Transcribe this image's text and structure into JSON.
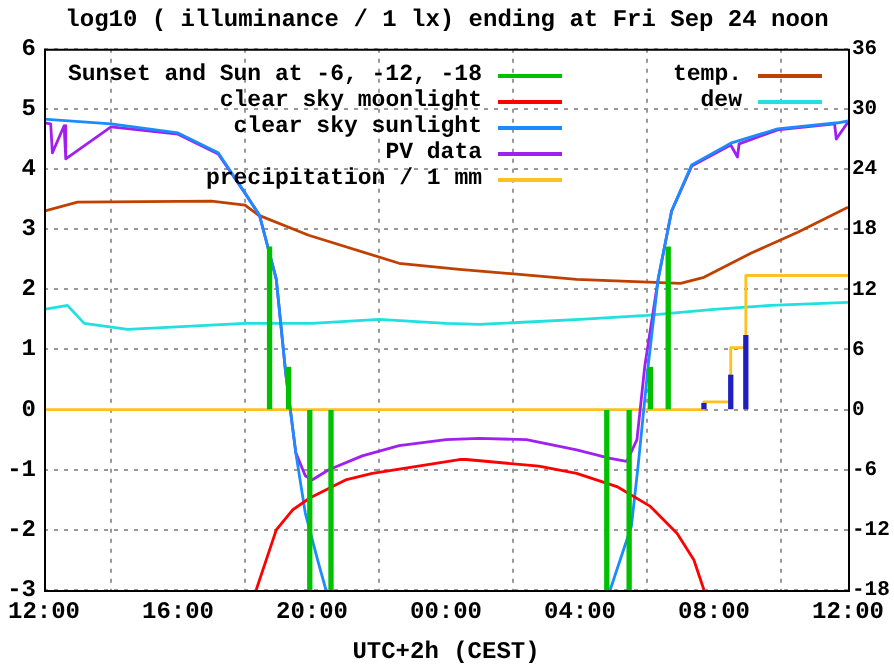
{
  "chart_data": {
    "type": "line",
    "title": "log10 ( illuminance / 1 lx) ending at Fri Sep 24 noon",
    "xlabel": "UTC+2h (CEST)",
    "xlim": [
      "--09-23T12:00",
      "--09-24T12:00"
    ],
    "xticks": [
      {
        "value": "--09-23T12:00",
        "label": "12:00"
      },
      {
        "value": "--09-23T16:00",
        "label": "16:00"
      },
      {
        "value": "--09-23T20:00",
        "label": "20:00"
      },
      {
        "value": "--09-24T00:00",
        "label": "00:00"
      },
      {
        "value": "--09-24T04:00",
        "label": "04:00"
      },
      {
        "value": "--09-24T08:00",
        "label": "08:00"
      },
      {
        "value": "--09-24T12:00",
        "label": "12:00"
      }
    ],
    "ylim": [
      -3,
      6
    ],
    "yticks": [
      -3,
      -2,
      -1,
      0,
      1,
      2,
      3,
      4,
      5,
      6
    ],
    "y2lim": [
      -18,
      36
    ],
    "y2ticks": [
      -18,
      -12,
      -6,
      0,
      6,
      12,
      18,
      24,
      30,
      36
    ],
    "grid": true,
    "legend": "top left",
    "series": [
      {
        "name": "Sunset and Sun at -6, -12, -18",
        "type": "bar",
        "color": "#00c000",
        "x": [
          "--09-23T18:44",
          "--09-23T19:18",
          "--09-23T19:56",
          "--09-23T20:34",
          "--09-24T04:48",
          "--09-24T05:28",
          "--09-24T06:06",
          "--09-24T06:38"
        ],
        "values": [
          2.7,
          0.7,
          -3,
          -3,
          -3,
          -3,
          0.7,
          2.7
        ]
      },
      {
        "name": "clear sky moonlight",
        "color": "#ff0000",
        "x": [
          "--09-23T18:20",
          "--09-23T18:56",
          "--09-23T19:25",
          "--09-23T19:56",
          "--09-23T21:00",
          "--09-23T21:48",
          "--09-24T00:24",
          "--09-24T00:36",
          "--09-24T02:46",
          "--09-24T03:54",
          "--09-24T05:06",
          "--09-24T06:06",
          "--09-24T06:54",
          "--09-24T07:24",
          "--09-24T07:42"
        ],
        "values": [
          -3,
          -2,
          -1.67,
          -1.47,
          -1.17,
          -1.06,
          -0.83,
          -0.83,
          -0.94,
          -1.06,
          -1.28,
          -1.61,
          -2.06,
          -2.5,
          -3
        ]
      },
      {
        "name": "clear sky sunlight",
        "color": "#1a8cff",
        "x": [
          "--09-23T12:00",
          "--09-23T14:00",
          "--09-23T16:00",
          "--09-23T17:12",
          "--09-23T18:00",
          "--09-23T18:26",
          "--09-23T18:56",
          "--09-23T19:13",
          "--09-23T19:31",
          "--09-23T19:48",
          "--09-23T20:10",
          "--09-23T20:25",
          "--09-24T00:00",
          "--09-24T04:54",
          "--09-24T05:32",
          "--09-24T05:44",
          "--09-24T06:02",
          "--09-24T06:20",
          "--09-24T06:44",
          "--09-24T07:20",
          "--09-24T08:30",
          "--09-24T09:54",
          "--09-24T11:42",
          "--09-24T12:00"
        ],
        "values": [
          4.83,
          4.75,
          4.6,
          4.27,
          3.6,
          3.23,
          2.17,
          0.6,
          -0.72,
          -1.72,
          -2.5,
          -3,
          null,
          -3,
          -1.94,
          -0.94,
          0.72,
          2.17,
          3.3,
          4.07,
          4.43,
          4.67,
          4.77,
          4.8
        ]
      },
      {
        "name": "PV data",
        "color": "#a020f0",
        "x": [
          "--09-23T12:00",
          "--09-23T12:12",
          "--09-23T12:15",
          "--09-23T12:36",
          "--09-23T12:39",
          "--09-23T14:00",
          "--09-23T16:00",
          "--09-23T17:12",
          "--09-23T18:00",
          "--09-23T18:26",
          "--09-23T18:56",
          "--09-23T19:13",
          "--09-23T19:31",
          "--09-23T19:48",
          "--09-23T20:00",
          "--09-23T20:30",
          "--09-23T21:30",
          "--09-23T22:36",
          "--09-24T00:00",
          "--09-24T01:00",
          "--09-24T02:24",
          "--09-24T03:54",
          "--09-24T04:54",
          "--09-24T05:24",
          "--09-24T05:42",
          "--09-24T05:56",
          "--09-24T06:20",
          "--09-24T06:44",
          "--09-24T07:20",
          "--09-24T08:30",
          "--09-24T08:42",
          "--09-24T08:45",
          "--09-24T09:54",
          "--09-24T11:36",
          "--09-24T11:39",
          "--09-24T12:00"
        ],
        "values": [
          4.77,
          4.75,
          4.27,
          4.72,
          4.17,
          4.7,
          4.58,
          4.25,
          3.6,
          3.23,
          2.17,
          0.6,
          -0.72,
          -1.1,
          -1.17,
          -1.0,
          -0.77,
          -0.6,
          -0.5,
          -0.48,
          -0.5,
          -0.67,
          -0.81,
          -0.86,
          -0.5,
          0.72,
          2.17,
          3.3,
          4.05,
          4.4,
          4.2,
          4.42,
          4.65,
          4.75,
          4.5,
          4.78
        ]
      },
      {
        "name": "precipitation / 1 mm",
        "type": "step",
        "color": "#ffc020",
        "x": [
          "--09-23T12:00",
          "--09-24T07:42",
          "--09-24T08:30",
          "--09-24T08:57",
          "--09-24T12:00"
        ],
        "values": [
          0,
          0.13,
          1.03,
          2.23,
          2.23
        ]
      },
      {
        "type": "bar",
        "color": "#2020c0",
        "x": [
          "--09-24T07:42",
          "--09-24T08:30",
          "--09-24T08:57"
        ],
        "values": [
          0.1,
          0.57,
          1.23
        ]
      },
      {
        "name": "temp.",
        "axis": "y2",
        "color": "#c04000",
        "x": [
          "--09-23T12:00",
          "--09-23T13:00",
          "--09-23T17:00",
          "--09-23T18:00",
          "--09-23T18:24",
          "--09-23T19:54",
          "--09-23T22:36",
          "--09-24T00:24",
          "--09-24T03:54",
          "--09-24T07:00",
          "--09-24T07:42",
          "--09-24T09:06",
          "--09-24T10:30",
          "--09-24T12:00"
        ],
        "values": [
          19.8,
          20.7,
          20.8,
          20.4,
          19.4,
          17.4,
          14.6,
          14,
          13,
          12.6,
          13.2,
          15.6,
          17.7,
          20.2
        ]
      },
      {
        "name": "dew",
        "axis": "y2",
        "color": "#20e0e0",
        "x": [
          "--09-23T12:00",
          "--09-23T12:42",
          "--09-23T13:12",
          "--09-23T14:30",
          "--09-23T18:00",
          "--09-23T20:00",
          "--09-23T22:00",
          "--09-24T00:00",
          "--09-24T01:00",
          "--09-24T04:00",
          "--09-24T06:00",
          "--09-24T08:00",
          "--09-24T09:42",
          "--09-24T12:00"
        ],
        "values": [
          10,
          10.4,
          8.6,
          8,
          8.6,
          8.6,
          9,
          8.6,
          8.5,
          9,
          9.4,
          10,
          10.4,
          10.7
        ]
      }
    ]
  }
}
